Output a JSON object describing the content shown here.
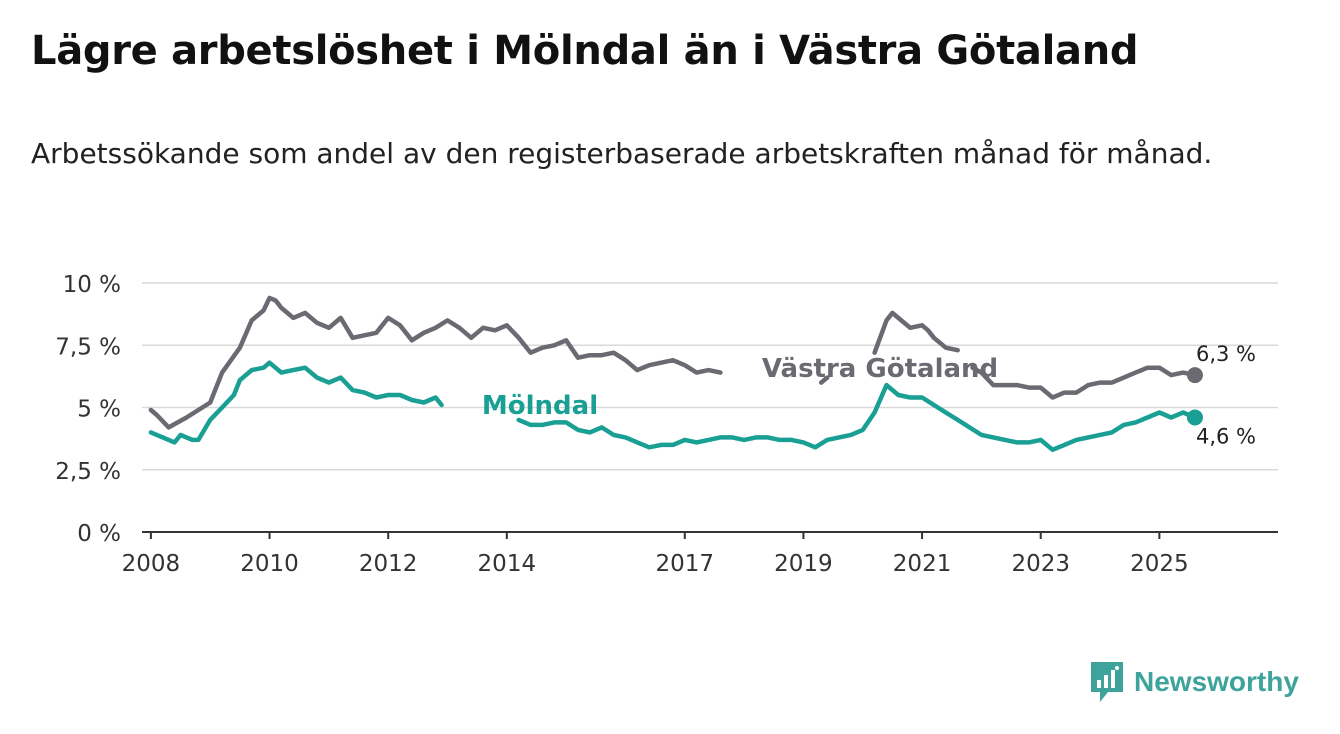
{
  "title": "Lägre arbetslöshet i Mölndal än i Västra Götaland",
  "subtitle": "Arbetssökande som andel av den registerbaserade arbetskraften månad för månad.",
  "brand": {
    "name": "Newsworthy",
    "icon": "newsworthy-logo-icon",
    "color": "#3ea39b"
  },
  "chart_data": {
    "type": "line",
    "title": "Lägre arbetslöshet i Mölndal än i Västra Götaland",
    "xlabel": "",
    "ylabel": "",
    "ylim": [
      0,
      10
    ],
    "xlim": [
      2007.85,
      2027.0
    ],
    "grid": true,
    "y_ticks": [
      0,
      2.5,
      5,
      7.5,
      10
    ],
    "y_tick_labels": [
      "0 %",
      "2,5 %",
      "5 %",
      "7,5 %",
      "10 %"
    ],
    "x_ticks": [
      2008,
      2010,
      2012,
      2014,
      2017,
      2019,
      2021,
      2023,
      2025
    ],
    "x_tick_labels": [
      "2008",
      "2010",
      "2012",
      "2014",
      "2017",
      "2019",
      "2021",
      "2023",
      "2025"
    ],
    "series": [
      {
        "name": "Västra Götaland",
        "color": "#6b6a72",
        "end_label": "6,3 %",
        "x": [
          2008.0,
          2008.1,
          2008.3,
          2008.6,
          2008.8,
          2009.0,
          2009.2,
          2009.5,
          2009.7,
          2009.9,
          2010.0,
          2010.1,
          2010.2,
          2010.4,
          2010.6,
          2010.8,
          2011.0,
          2011.2,
          2011.4,
          2011.6,
          2011.8,
          2012.0,
          2012.2,
          2012.4,
          2012.6,
          2012.8,
          2013.0,
          2013.2,
          2013.4,
          2013.6,
          2013.8,
          2014.0,
          2014.2,
          2014.4,
          2014.6,
          2014.8,
          2015.0,
          2015.2,
          2015.4,
          2015.6,
          2015.8,
          2016.0,
          2016.2,
          2016.4,
          2016.6,
          2016.8,
          2017.0,
          2017.2,
          2017.4,
          2017.6,
          null,
          2019.3,
          2019.4,
          null,
          2020.2,
          2020.4,
          2020.5,
          2020.6,
          2020.8,
          2021.0,
          2021.1,
          2021.2,
          2021.4,
          2021.6,
          null,
          2021.85,
          2022.0,
          2022.2,
          2022.4,
          2022.6,
          2022.8,
          2023.0,
          2023.2,
          2023.4,
          2023.6,
          2023.8,
          2024.0,
          2024.2,
          2024.4,
          2024.6,
          2024.8,
          2025.0,
          2025.2,
          2025.4,
          2025.6
        ],
        "values": [
          4.9,
          4.7,
          4.2,
          4.6,
          4.9,
          5.2,
          6.4,
          7.4,
          8.5,
          8.9,
          9.4,
          9.3,
          9.0,
          8.6,
          8.8,
          8.4,
          8.2,
          8.6,
          7.8,
          7.9,
          8.0,
          8.6,
          8.3,
          7.7,
          8.0,
          8.2,
          8.5,
          8.2,
          7.8,
          8.2,
          8.1,
          8.3,
          7.8,
          7.2,
          7.4,
          7.5,
          7.7,
          7.0,
          7.1,
          7.1,
          7.2,
          6.9,
          6.5,
          6.7,
          6.8,
          6.9,
          6.7,
          6.4,
          6.5,
          6.4,
          null,
          6.0,
          6.2,
          null,
          7.2,
          8.5,
          8.8,
          8.6,
          8.2,
          8.3,
          8.1,
          7.8,
          7.4,
          7.3,
          null,
          6.6,
          6.4,
          5.9,
          5.9,
          5.9,
          5.8,
          5.8,
          5.4,
          5.6,
          5.6,
          5.9,
          6.0,
          6.0,
          6.2,
          6.4,
          6.6,
          6.6,
          6.3,
          6.4,
          6.3
        ]
      },
      {
        "name": "Mölndal",
        "color": "#1a9f95",
        "end_label": "4,6 %",
        "x": [
          2008.0,
          2008.2,
          2008.3,
          2008.4,
          2008.5,
          2008.7,
          2008.8,
          2009.0,
          2009.2,
          2009.4,
          2009.5,
          2009.7,
          2009.9,
          2010.0,
          2010.1,
          2010.2,
          2010.4,
          2010.6,
          2010.8,
          2011.0,
          2011.2,
          2011.4,
          2011.6,
          2011.8,
          2012.0,
          2012.2,
          2012.4,
          2012.6,
          2012.8,
          2012.9,
          null,
          2014.2,
          2014.4,
          2014.6,
          2014.8,
          2015.0,
          2015.2,
          2015.4,
          2015.6,
          2015.8,
          2016.0,
          2016.2,
          2016.4,
          2016.6,
          2016.8,
          2017.0,
          2017.2,
          2017.4,
          2017.6,
          2017.8,
          2018.0,
          2018.2,
          2018.4,
          2018.6,
          2018.8,
          2019.0,
          2019.2,
          2019.4,
          2019.6,
          2019.8,
          2020.0,
          2020.2,
          2020.4,
          2020.6,
          2020.8,
          2021.0,
          2021.2,
          2021.4,
          2021.6,
          2021.8,
          2022.0,
          2022.2,
          2022.4,
          2022.6,
          2022.8,
          2023.0,
          2023.2,
          2023.4,
          2023.6,
          2023.8,
          2024.0,
          2024.2,
          2024.4,
          2024.6,
          2024.8,
          2025.0,
          2025.2,
          2025.4,
          2025.6
        ],
        "values": [
          4.0,
          3.8,
          3.7,
          3.6,
          3.9,
          3.7,
          3.7,
          4.5,
          5.0,
          5.5,
          6.1,
          6.5,
          6.6,
          6.8,
          6.6,
          6.4,
          6.5,
          6.6,
          6.2,
          6.0,
          6.2,
          5.7,
          5.6,
          5.4,
          5.5,
          5.5,
          5.3,
          5.2,
          5.4,
          5.1,
          null,
          4.5,
          4.3,
          4.3,
          4.4,
          4.4,
          4.1,
          4.0,
          4.2,
          3.9,
          3.8,
          3.6,
          3.4,
          3.5,
          3.5,
          3.7,
          3.6,
          3.7,
          3.8,
          3.8,
          3.7,
          3.8,
          3.8,
          3.7,
          3.7,
          3.6,
          3.4,
          3.7,
          3.8,
          3.9,
          4.1,
          4.8,
          5.9,
          5.5,
          5.4,
          5.4,
          5.1,
          4.8,
          4.5,
          4.2,
          3.9,
          3.8,
          3.7,
          3.6,
          3.6,
          3.7,
          3.3,
          3.5,
          3.7,
          3.8,
          3.9,
          4.0,
          4.3,
          4.4,
          4.6,
          4.8,
          4.6,
          4.8,
          4.6
        ]
      }
    ],
    "annotations": [
      {
        "text": "Västra Götaland",
        "series": "Västra Götaland"
      },
      {
        "text": "Mölndal",
        "series": "Mölndal"
      }
    ]
  }
}
